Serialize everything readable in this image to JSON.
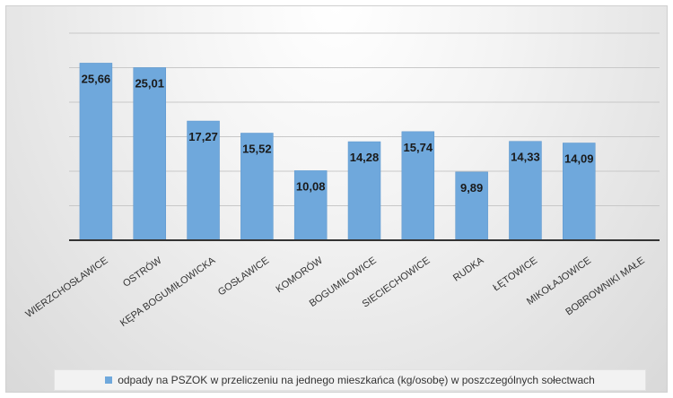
{
  "chart_data": {
    "type": "bar",
    "categories": [
      "WIERZCHOSŁAWICE",
      "OSTRÓW",
      "KĘPA BOGUMIŁOWICKA",
      "GOSŁAWICE",
      "KOMORÓW",
      "BOGUMIŁOWICE",
      "SIECIECHOWICE",
      "RUDKA",
      "ŁĘTOWICE",
      "MIKOŁAJOWICE",
      "BOBROWNIKI MAŁE"
    ],
    "value_labels": [
      "25,66",
      "25,01",
      "17,27",
      "15,52",
      "10,08",
      "14,28",
      "15,74",
      "9,89",
      "14,33",
      "14,09",
      ""
    ],
    "series": [
      {
        "name": "odpady na PSZOK w przeliczeniu na jednego mieszkańca (kg/osobę) w poszczególnych sołectwach",
        "values": [
          25.66,
          25.01,
          17.27,
          15.52,
          10.08,
          14.28,
          15.74,
          9.89,
          14.33,
          14.09,
          0
        ]
      }
    ],
    "ylim": [
      0,
      30
    ],
    "grid": true,
    "legend_position": "bottom",
    "colors": {
      "bar": "#6fa8dc",
      "bar_edge": "#5b95cc",
      "grid": "#c8c8c8",
      "axis": "#333333"
    }
  }
}
